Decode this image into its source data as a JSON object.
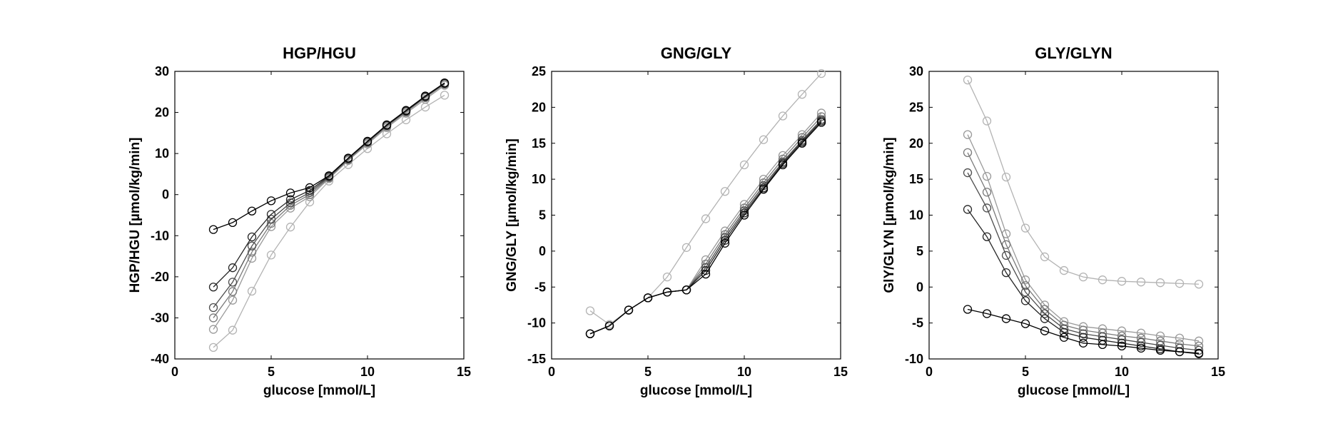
{
  "chart_data": [
    {
      "type": "line",
      "title": "HGP/HGU",
      "xlabel": "glucose [mmol/L]",
      "ylabel": "HGP/HGU [µmol/kg/min]",
      "xlim": [
        0,
        15
      ],
      "ylim": [
        -40,
        30
      ],
      "xticks": [
        0,
        5,
        10,
        15
      ],
      "yticks": [
        -40,
        -30,
        -20,
        -10,
        0,
        10,
        20,
        30
      ],
      "grid": false,
      "marker": "circle",
      "series": [
        {
          "color": "#b3b3b3",
          "x": [
            2,
            3,
            4,
            5,
            6,
            7,
            8,
            9,
            10,
            11,
            12,
            13,
            14
          ],
          "y": [
            -37.2,
            -33.0,
            -23.5,
            -14.7,
            -7.9,
            -1.8,
            3.3,
            7.3,
            11.2,
            14.8,
            18.2,
            21.3,
            24.2
          ]
        },
        {
          "color": "#999999",
          "x": [
            2,
            3,
            4,
            5,
            6,
            7,
            8,
            9,
            10,
            11,
            12,
            13,
            14
          ],
          "y": [
            -32.8,
            -25.7,
            -15.5,
            -7.8,
            -3.3,
            -0.5,
            3.9,
            8.3,
            12.3,
            16.3,
            19.8,
            23.2,
            26.6
          ]
        },
        {
          "color": "#7a7a7a",
          "x": [
            2,
            3,
            4,
            5,
            6,
            7,
            8,
            9,
            10,
            11,
            12,
            13,
            14
          ],
          "y": [
            -30.0,
            -23.6,
            -14.0,
            -7.0,
            -2.6,
            0.0,
            4.1,
            8.5,
            12.6,
            16.6,
            20.1,
            23.6,
            26.9
          ]
        },
        {
          "color": "#4d4d4d",
          "x": [
            2,
            3,
            4,
            5,
            6,
            7,
            8,
            9,
            10,
            11,
            12,
            13,
            14
          ],
          "y": [
            -27.5,
            -21.3,
            -12.5,
            -6.0,
            -2.0,
            0.5,
            4.3,
            8.7,
            12.8,
            16.8,
            20.3,
            23.8,
            27.0
          ]
        },
        {
          "color": "#262626",
          "x": [
            2,
            3,
            4,
            5,
            6,
            7,
            8,
            9,
            10,
            11,
            12,
            13,
            14
          ],
          "y": [
            -22.5,
            -17.8,
            -10.3,
            -4.8,
            -1.2,
            1.0,
            4.5,
            8.8,
            12.9,
            16.9,
            20.4,
            23.9,
            27.1
          ]
        },
        {
          "color": "#000000",
          "x": [
            2,
            3,
            4,
            5,
            6,
            7,
            8,
            9,
            10,
            11,
            12,
            13,
            14
          ],
          "y": [
            -8.5,
            -6.8,
            -4.0,
            -1.5,
            0.4,
            1.7,
            4.6,
            8.9,
            13.0,
            17.0,
            20.5,
            24.0,
            27.2
          ]
        }
      ]
    },
    {
      "type": "line",
      "title": "GNG/GLY",
      "xlabel": "glucose [mmol/L]",
      "ylabel": "GNG/GLY [µmol/kg/min]",
      "xlim": [
        0,
        15
      ],
      "ylim": [
        -15,
        25
      ],
      "xticks": [
        0,
        5,
        10,
        15
      ],
      "yticks": [
        -15,
        -10,
        -5,
        0,
        5,
        10,
        15,
        20,
        25
      ],
      "grid": false,
      "marker": "circle",
      "series": [
        {
          "color": "#b3b3b3",
          "x": [
            2,
            3,
            4,
            5,
            6,
            7,
            8,
            9,
            10,
            11,
            12,
            13,
            14
          ],
          "y": [
            -8.3,
            -10.2,
            -8.2,
            -6.5,
            -3.6,
            0.5,
            4.5,
            8.3,
            12.0,
            15.5,
            18.8,
            21.8,
            24.7
          ]
        },
        {
          "color": "#999999",
          "x": [
            2,
            3,
            4,
            5,
            6,
            7,
            8,
            9,
            10,
            11,
            12,
            13,
            14
          ],
          "y": [
            -11.5,
            -10.4,
            -8.2,
            -6.5,
            -5.7,
            -5.4,
            -1.2,
            2.8,
            6.5,
            10.0,
            13.3,
            16.2,
            19.2
          ]
        },
        {
          "color": "#7a7a7a",
          "x": [
            2,
            3,
            4,
            5,
            6,
            7,
            8,
            9,
            10,
            11,
            12,
            13,
            14
          ],
          "y": [
            -11.5,
            -10.4,
            -8.2,
            -6.5,
            -5.7,
            -5.4,
            -1.8,
            2.3,
            6.0,
            9.5,
            12.8,
            15.8,
            18.7
          ]
        },
        {
          "color": "#4d4d4d",
          "x": [
            2,
            3,
            4,
            5,
            6,
            7,
            8,
            9,
            10,
            11,
            12,
            13,
            14
          ],
          "y": [
            -11.5,
            -10.4,
            -8.2,
            -6.5,
            -5.7,
            -5.4,
            -2.3,
            1.9,
            5.6,
            9.1,
            12.4,
            15.4,
            18.3
          ]
        },
        {
          "color": "#262626",
          "x": [
            2,
            3,
            4,
            5,
            6,
            7,
            8,
            9,
            10,
            11,
            12,
            13,
            14
          ],
          "y": [
            -11.5,
            -10.4,
            -8.2,
            -6.5,
            -5.7,
            -5.4,
            -2.7,
            1.5,
            5.3,
            8.8,
            12.2,
            15.2,
            18.1
          ]
        },
        {
          "color": "#000000",
          "x": [
            2,
            3,
            4,
            5,
            6,
            7,
            8,
            9,
            10,
            11,
            12,
            13,
            14
          ],
          "y": [
            -11.5,
            -10.4,
            -8.2,
            -6.5,
            -5.7,
            -5.4,
            -3.2,
            1.1,
            5.0,
            8.6,
            12.0,
            15.0,
            17.9
          ]
        }
      ]
    },
    {
      "type": "line",
      "title": "GLY/GLYN",
      "xlabel": "glucose [mmol/L]",
      "ylabel": "GlY/GLYN [µmol/kg/min]",
      "xlim": [
        0,
        15
      ],
      "ylim": [
        -10,
        30
      ],
      "xticks": [
        0,
        5,
        10,
        15
      ],
      "yticks": [
        -10,
        -5,
        0,
        5,
        10,
        15,
        20,
        25,
        30
      ],
      "grid": false,
      "marker": "circle",
      "series": [
        {
          "color": "#b3b3b3",
          "x": [
            2,
            3,
            4,
            5,
            6,
            7,
            8,
            9,
            10,
            11,
            12,
            13,
            14
          ],
          "y": [
            28.8,
            23.1,
            15.3,
            8.2,
            4.2,
            2.3,
            1.4,
            1.0,
            0.8,
            0.7,
            0.6,
            0.5,
            0.4
          ]
        },
        {
          "color": "#999999",
          "x": [
            2,
            3,
            4,
            5,
            6,
            7,
            8,
            9,
            10,
            11,
            12,
            13,
            14
          ],
          "y": [
            21.2,
            15.4,
            7.4,
            1.0,
            -2.5,
            -4.8,
            -5.5,
            -5.8,
            -6.1,
            -6.4,
            -6.8,
            -7.1,
            -7.5
          ]
        },
        {
          "color": "#7a7a7a",
          "x": [
            2,
            3,
            4,
            5,
            6,
            7,
            8,
            9,
            10,
            11,
            12,
            13,
            14
          ],
          "y": [
            18.7,
            13.2,
            5.9,
            0.2,
            -3.1,
            -5.3,
            -6.0,
            -6.4,
            -6.8,
            -7.1,
            -7.5,
            -7.9,
            -8.2
          ]
        },
        {
          "color": "#4d4d4d",
          "x": [
            2,
            3,
            4,
            5,
            6,
            7,
            8,
            9,
            10,
            11,
            12,
            13,
            14
          ],
          "y": [
            15.9,
            11.0,
            4.4,
            -0.7,
            -3.7,
            -5.8,
            -6.5,
            -6.9,
            -7.3,
            -7.7,
            -8.1,
            -8.5,
            -8.8
          ]
        },
        {
          "color": "#262626",
          "x": [
            2,
            3,
            4,
            5,
            6,
            7,
            8,
            9,
            10,
            11,
            12,
            13,
            14
          ],
          "y": [
            10.8,
            7.0,
            2.0,
            -1.9,
            -4.4,
            -6.3,
            -7.0,
            -7.4,
            -7.8,
            -8.2,
            -8.6,
            -9.0,
            -9.3
          ]
        },
        {
          "color": "#000000",
          "x": [
            2,
            3,
            4,
            5,
            6,
            7,
            8,
            9,
            10,
            11,
            12,
            13,
            14
          ],
          "y": [
            -3.1,
            -3.7,
            -4.4,
            -5.1,
            -6.1,
            -7.0,
            -7.8,
            -8.0,
            -8.2,
            -8.5,
            -8.8,
            -9.0,
            -9.2
          ]
        }
      ]
    }
  ]
}
